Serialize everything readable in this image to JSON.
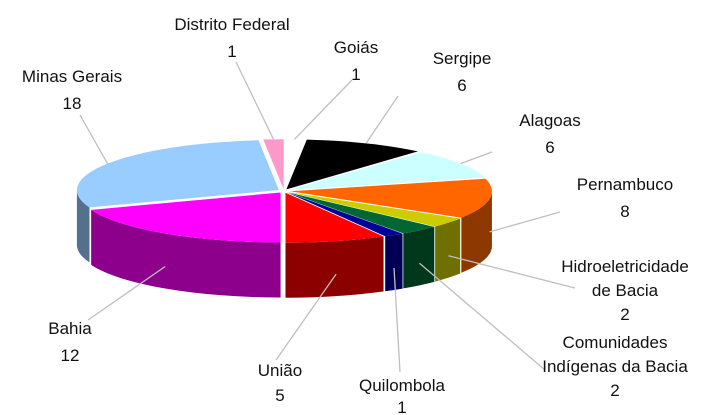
{
  "chart_data": {
    "type": "pie",
    "style": "3d-exploded",
    "categories": [
      "Goiás",
      "Sergipe",
      "Alagoas",
      "Pernambuco",
      "Hidroeletricidade de Bacia",
      "Comunidades Indígenas da Bacia",
      "Quilombola",
      "União",
      "Bahia",
      "Minas Gerais",
      "Distrito Federal"
    ],
    "values": [
      1,
      6,
      6,
      8,
      2,
      2,
      1,
      5,
      12,
      18,
      1
    ],
    "colors": [
      "#ffffff",
      "#000000",
      "#ccffff",
      "#ff6600",
      "#cccc00",
      "#006633",
      "#000099",
      "#ff0000",
      "#ff00ff",
      "#99ccff",
      "#ff99cc"
    ],
    "labels": [
      {
        "name": "Goiás",
        "value": "1"
      },
      {
        "name": "Sergipe",
        "value": "6"
      },
      {
        "name": "Alagoas",
        "value": "6"
      },
      {
        "name": "Pernambuco",
        "value": "8"
      },
      {
        "name_lines": [
          "Hidroeletricidade",
          "de Bacia"
        ],
        "value": "2"
      },
      {
        "name_lines": [
          "Comunidades",
          "Indígenas da Bacia"
        ],
        "value": "2"
      },
      {
        "name": "Quilombola",
        "value": "1"
      },
      {
        "name": "União",
        "value": "5"
      },
      {
        "name": "Bahia",
        "value": "12"
      },
      {
        "name": "Minas Gerais",
        "value": "18"
      },
      {
        "name": "Distrito Federal",
        "value": "1"
      }
    ]
  }
}
